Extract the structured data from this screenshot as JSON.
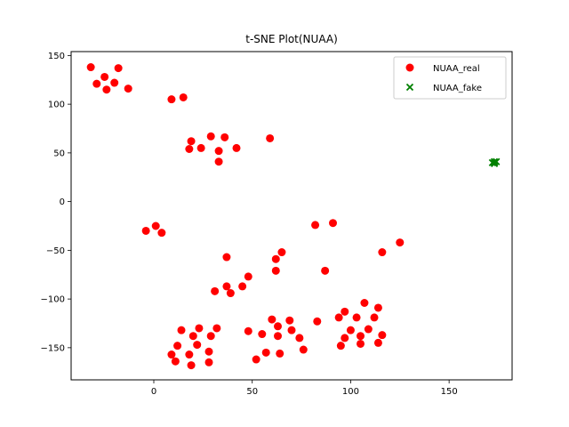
{
  "chart_data": {
    "type": "scatter",
    "title": "t-SNE Plot(NUAA)",
    "xlabel": "",
    "ylabel": "",
    "xlim": [
      -42,
      182
    ],
    "ylim": [
      -183,
      154
    ],
    "xticks": [
      0,
      50,
      100,
      150
    ],
    "yticks": [
      -150,
      -100,
      -50,
      0,
      50,
      100,
      150
    ],
    "xtick_labels": [
      "0",
      "50",
      "100",
      "150"
    ],
    "ytick_labels": [
      "−150",
      "−100",
      "−50",
      "0",
      "50",
      "100",
      "150"
    ],
    "grid": false,
    "legend": "top-right",
    "series": [
      {
        "name": "NUAA_real",
        "marker": "circle",
        "color": "#ff0000",
        "points": [
          [
            -32,
            138
          ],
          [
            -29,
            121
          ],
          [
            -25,
            128
          ],
          [
            -24,
            115
          ],
          [
            -20,
            122
          ],
          [
            -18,
            137
          ],
          [
            -13,
            116
          ],
          [
            9,
            105
          ],
          [
            15,
            107
          ],
          [
            18,
            54
          ],
          [
            19,
            62
          ],
          [
            24,
            55
          ],
          [
            29,
            67
          ],
          [
            33,
            52
          ],
          [
            33,
            41
          ],
          [
            36,
            66
          ],
          [
            42,
            55
          ],
          [
            59,
            65
          ],
          [
            -4,
            -30
          ],
          [
            1,
            -25
          ],
          [
            4,
            -32
          ],
          [
            82,
            -24
          ],
          [
            91,
            -22
          ],
          [
            125,
            -42
          ],
          [
            116,
            -52
          ],
          [
            37,
            -57
          ],
          [
            65,
            -52
          ],
          [
            62,
            -59
          ],
          [
            62,
            -71
          ],
          [
            87,
            -71
          ],
          [
            48,
            -77
          ],
          [
            37,
            -87
          ],
          [
            45,
            -87
          ],
          [
            39,
            -94
          ],
          [
            31,
            -92
          ],
          [
            107,
            -104
          ],
          [
            114,
            -109
          ],
          [
            97,
            -113
          ],
          [
            94,
            -119
          ],
          [
            103,
            -119
          ],
          [
            112,
            -119
          ],
          [
            60,
            -121
          ],
          [
            69,
            -122
          ],
          [
            83,
            -123
          ],
          [
            14,
            -132
          ],
          [
            23,
            -130
          ],
          [
            32,
            -130
          ],
          [
            48,
            -133
          ],
          [
            55,
            -136
          ],
          [
            63,
            -128
          ],
          [
            70,
            -132
          ],
          [
            74,
            -140
          ],
          [
            63,
            -138
          ],
          [
            100,
            -132
          ],
          [
            109,
            -131
          ],
          [
            116,
            -137
          ],
          [
            97,
            -140
          ],
          [
            105,
            -138
          ],
          [
            12,
            -148
          ],
          [
            20,
            -138
          ],
          [
            22,
            -147
          ],
          [
            29,
            -138
          ],
          [
            28,
            -154
          ],
          [
            9,
            -157
          ],
          [
            18,
            -157
          ],
          [
            57,
            -155
          ],
          [
            64,
            -156
          ],
          [
            76,
            -152
          ],
          [
            95,
            -148
          ],
          [
            105,
            -146
          ],
          [
            114,
            -145
          ],
          [
            11,
            -164
          ],
          [
            19,
            -168
          ],
          [
            28,
            -165
          ],
          [
            52,
            -162
          ]
        ]
      },
      {
        "name": "NUAA_fake",
        "marker": "x",
        "color": "#008000",
        "points": [
          [
            173,
            40
          ],
          [
            173,
            39
          ],
          [
            172,
            40
          ],
          [
            174,
            41
          ],
          [
            173,
            41
          ]
        ]
      }
    ]
  }
}
